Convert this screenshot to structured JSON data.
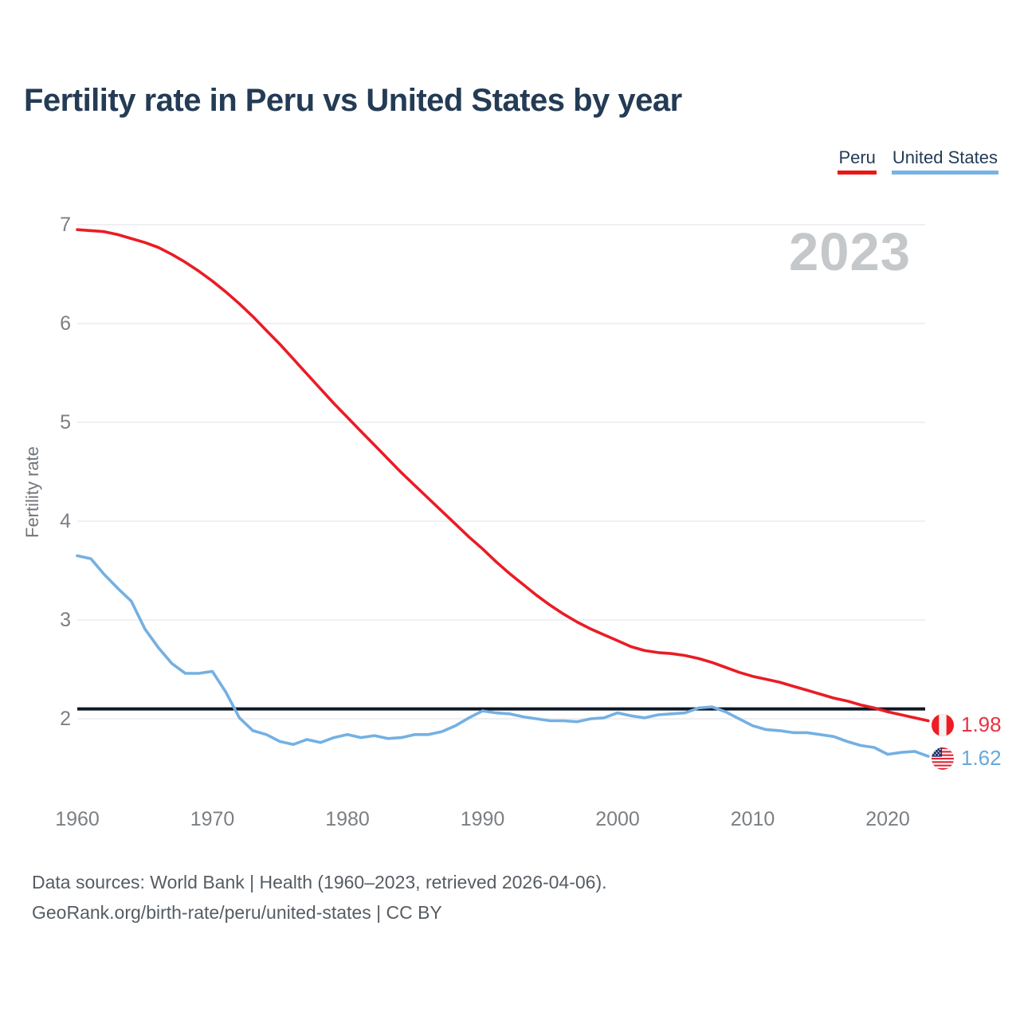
{
  "title": "Fertility rate in Peru vs United States by year",
  "watermark": "2023",
  "legend": {
    "items": [
      {
        "label": "Peru",
        "color": "#ee1613"
      },
      {
        "label": "United States",
        "color": "#77b2e4"
      }
    ]
  },
  "end_labels": [
    {
      "country": "Peru",
      "value": "1.98",
      "color": "#e93240",
      "flag_icon": "peru-flag-icon"
    },
    {
      "country": "United States",
      "value": "1.62",
      "color": "#64a9e0",
      "flag_icon": "us-flag-icon"
    }
  ],
  "footer": {
    "line1": "Data sources: World Bank | Health (1960–2023, retrieved 2026-04-06).",
    "line2": "GeoRank.org/birth-rate/peru/united-states | CC BY"
  },
  "chart_data": {
    "type": "line",
    "title": "Fertility rate in Peru vs United States by year",
    "xlabel": "",
    "ylabel": "Fertility rate",
    "x_range": [
      1960,
      2023
    ],
    "x_ticks": [
      1960,
      1970,
      1980,
      1990,
      2000,
      2010,
      2020
    ],
    "y_ticks": [
      2,
      3,
      4,
      5,
      6,
      7
    ],
    "ylim": [
      1.5,
      7.05
    ],
    "grid": "horizontal",
    "legend_position": "top-right",
    "reference_line": {
      "value": 2.1,
      "color": "#0d1726",
      "note": "replacement-level line"
    },
    "series": [
      {
        "name": "Peru",
        "color": "#ea1c25",
        "end_value_label": "1.98",
        "values": [
          6.95,
          6.94,
          6.93,
          6.9,
          6.86,
          6.82,
          6.77,
          6.7,
          6.62,
          6.53,
          6.43,
          6.32,
          6.2,
          6.07,
          5.93,
          5.79,
          5.64,
          5.49,
          5.34,
          5.19,
          5.05,
          4.91,
          4.77,
          4.63,
          4.49,
          4.36,
          4.23,
          4.1,
          3.97,
          3.84,
          3.72,
          3.59,
          3.47,
          3.36,
          3.25,
          3.15,
          3.06,
          2.98,
          2.91,
          2.85,
          2.79,
          2.73,
          2.69,
          2.67,
          2.66,
          2.64,
          2.61,
          2.57,
          2.52,
          2.47,
          2.43,
          2.4,
          2.37,
          2.33,
          2.29,
          2.25,
          2.21,
          2.18,
          2.14,
          2.11,
          2.07,
          2.04,
          2.01,
          1.98
        ]
      },
      {
        "name": "United States",
        "color": "#74b0e2",
        "end_value_label": "1.62",
        "values": [
          3.65,
          3.62,
          3.46,
          3.32,
          3.19,
          2.91,
          2.72,
          2.56,
          2.46,
          2.46,
          2.48,
          2.27,
          2.01,
          1.88,
          1.84,
          1.77,
          1.74,
          1.79,
          1.76,
          1.81,
          1.84,
          1.81,
          1.83,
          1.8,
          1.81,
          1.84,
          1.84,
          1.87,
          1.93,
          2.01,
          2.08,
          2.06,
          2.05,
          2.02,
          2.0,
          1.98,
          1.98,
          1.97,
          2.0,
          2.01,
          2.06,
          2.03,
          2.01,
          2.04,
          2.05,
          2.06,
          2.11,
          2.12,
          2.07,
          2.0,
          1.93,
          1.89,
          1.88,
          1.86,
          1.86,
          1.84,
          1.82,
          1.77,
          1.73,
          1.71,
          1.64,
          1.66,
          1.67,
          1.62
        ]
      }
    ]
  }
}
